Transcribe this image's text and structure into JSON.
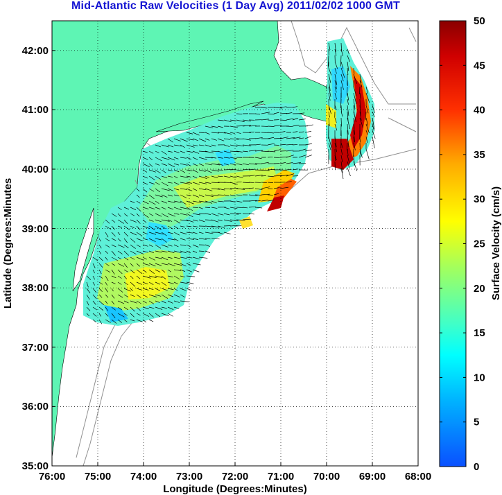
{
  "title": "Mid-Atlantic Raw Velocities (1 Day Avg) 2011/02/02 1000 GMT",
  "map": {
    "xlabel": "Longitude (Degrees:Minutes)",
    "ylabel": "Latitude (Degrees:Minutes",
    "x_ticks": [
      "76:00",
      "75:00",
      "74:00",
      "73:00",
      "72:00",
      "71:00",
      "70:00",
      "69:00",
      "68:00"
    ],
    "y_ticks": [
      "42:00",
      "41:00",
      "40:00",
      "39:00",
      "38:00",
      "37:00",
      "36:00",
      "35:00"
    ],
    "lon_range_west": [
      68,
      76
    ],
    "lat_range": [
      35,
      42.5
    ],
    "grid": "dotted",
    "colors": {
      "land": "#5ef5b4",
      "ocean": "#ffffff",
      "bathymetry": "#909090"
    }
  },
  "colorbar": {
    "label": "Surface Velocity (cm/s)",
    "ticks": [
      "0",
      "5",
      "10",
      "15",
      "20",
      "25",
      "30",
      "35",
      "40",
      "45",
      "50"
    ],
    "range": [
      0,
      50
    ],
    "colormap": "jet"
  }
}
